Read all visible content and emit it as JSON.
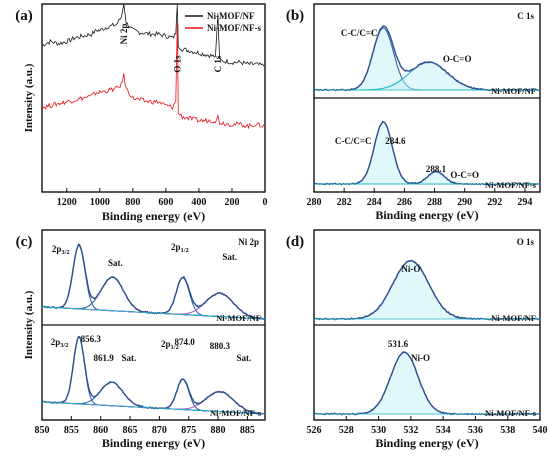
{
  "colors": {
    "black_series": "#1a1a1a",
    "red_series": "#e8141b",
    "fit_envelope": "#2f4f8f",
    "component_blue": "#2e68b0",
    "component_cyan": "#19b8c8",
    "component_purple": "#b15ec9",
    "fill_cyan": "#bdeff5"
  },
  "chart_data": [
    {
      "id": "a",
      "type": "line",
      "panel_label": "(a)",
      "xlabel": "Binding energy (eV)",
      "ylabel": "Intensity (a.u.)",
      "xlim": [
        1350,
        0
      ],
      "x_ticks": [
        1200,
        1000,
        800,
        600,
        400,
        200,
        0
      ],
      "legend_position": "top-right",
      "series": [
        {
          "name": "Ni-MOF/NF",
          "color": "#1a1a1a",
          "points": [
            [
              1350,
              0.78
            ],
            [
              1300,
              0.8
            ],
            [
              1250,
              0.79
            ],
            [
              1200,
              0.8
            ],
            [
              1150,
              0.82
            ],
            [
              1100,
              0.83
            ],
            [
              1050,
              0.84
            ],
            [
              1020,
              0.86
            ],
            [
              1000,
              0.86
            ],
            [
              950,
              0.88
            ],
            [
              900,
              0.89
            ],
            [
              870,
              0.93
            ],
            [
              855,
              1.0
            ],
            [
              840,
              0.9
            ],
            [
              800,
              0.86
            ],
            [
              760,
              0.85
            ],
            [
              700,
              0.84
            ],
            [
              650,
              0.84
            ],
            [
              600,
              0.83
            ],
            [
              560,
              0.82
            ],
            [
              540,
              0.84
            ],
            [
              531,
              1.0
            ],
            [
              525,
              0.78
            ],
            [
              500,
              0.76
            ],
            [
              450,
              0.75
            ],
            [
              400,
              0.74
            ],
            [
              350,
              0.73
            ],
            [
              300,
              0.72
            ],
            [
              285,
              0.95
            ],
            [
              275,
              0.7
            ],
            [
              200,
              0.69
            ],
            [
              150,
              0.69
            ],
            [
              100,
              0.68
            ],
            [
              60,
              0.68
            ],
            [
              0,
              0.67
            ]
          ]
        },
        {
          "name": "Ni-MOF/NF-s",
          "color": "#e8141b",
          "points": [
            [
              1350,
              0.45
            ],
            [
              1300,
              0.46
            ],
            [
              1250,
              0.47
            ],
            [
              1200,
              0.48
            ],
            [
              1150,
              0.49
            ],
            [
              1100,
              0.5
            ],
            [
              1050,
              0.51
            ],
            [
              1020,
              0.53
            ],
            [
              1000,
              0.53
            ],
            [
              950,
              0.54
            ],
            [
              900,
              0.55
            ],
            [
              870,
              0.57
            ],
            [
              855,
              0.62
            ],
            [
              840,
              0.55
            ],
            [
              800,
              0.5
            ],
            [
              760,
              0.49
            ],
            [
              700,
              0.48
            ],
            [
              650,
              0.48
            ],
            [
              600,
              0.46
            ],
            [
              560,
              0.45
            ],
            [
              540,
              0.48
            ],
            [
              531,
              0.9
            ],
            [
              525,
              0.42
            ],
            [
              500,
              0.4
            ],
            [
              450,
              0.39
            ],
            [
              400,
              0.38
            ],
            [
              350,
              0.38
            ],
            [
              300,
              0.38
            ],
            [
              285,
              0.4
            ],
            [
              275,
              0.37
            ],
            [
              200,
              0.36
            ],
            [
              150,
              0.36
            ],
            [
              100,
              0.35
            ],
            [
              60,
              0.36
            ],
            [
              0,
              0.35
            ]
          ]
        }
      ],
      "annotations": [
        {
          "text": "Ni 2p",
          "x": 855
        },
        {
          "text": "O 1s",
          "x": 531
        },
        {
          "text": "C 1s",
          "x": 285
        }
      ]
    },
    {
      "id": "b",
      "type": "line",
      "panel_label": "(b)",
      "xlabel": "Binding energy (eV)",
      "xlim": [
        280,
        295
      ],
      "x_ticks": [
        280,
        282,
        284,
        286,
        288,
        290,
        292,
        294
      ],
      "element_label": "C 1s",
      "subpanels": [
        {
          "sample": "Ni-MOF/NF",
          "components": [
            {
              "name": "C-C/C=C",
              "center": 284.6,
              "amplitude": 1.0,
              "fwhm": 1.6,
              "color": "#2e68b0"
            },
            {
              "name": "O-C=O",
              "center": 287.6,
              "amplitude": 0.45,
              "fwhm": 3.0,
              "color": "#19b8c8"
            }
          ],
          "labels": [
            {
              "text": "C-C/C=C",
              "x": 283.0
            },
            {
              "text": "O-C=O",
              "x": 289.5
            }
          ]
        },
        {
          "sample": "Ni-MOF/NF-s",
          "components": [
            {
              "name": "C-C/C=C",
              "center": 284.6,
              "amplitude": 1.0,
              "fwhm": 1.4,
              "color": "#2e68b0"
            },
            {
              "name": "O-C=O",
              "center": 288.1,
              "amplitude": 0.2,
              "fwhm": 1.3,
              "color": "#19b8c8"
            }
          ],
          "labels": [
            {
              "text": "C-C/C=C",
              "x": 282.6
            },
            {
              "text": "284.6",
              "x": 285.4
            },
            {
              "text": "288.1",
              "x": 288.1
            },
            {
              "text": "O-C=O",
              "x": 290.0
            }
          ]
        }
      ]
    },
    {
      "id": "c",
      "type": "line",
      "panel_label": "(c)",
      "xlabel": "Binding energy (eV)",
      "ylabel": "Intensity (a.u.)",
      "xlim": [
        850,
        888
      ],
      "x_ticks": [
        850,
        855,
        860,
        865,
        870,
        875,
        880,
        885
      ],
      "element_label": "Ni 2p",
      "subpanels": [
        {
          "sample": "Ni-MOF/NF",
          "components": [
            {
              "name": "2p3/2",
              "center": 856.3,
              "amplitude": 0.95,
              "fwhm": 2.4,
              "color": "#2e68b0"
            },
            {
              "name": "Sat.",
              "center": 862.0,
              "amplitude": 0.5,
              "fwhm": 4.5,
              "color": "#2e68b0"
            },
            {
              "name": "2p1/2",
              "center": 874.0,
              "amplitude": 0.55,
              "fwhm": 2.6,
              "color": "#2e68b0"
            },
            {
              "name": "Sat.",
              "center": 880.3,
              "amplitude": 0.35,
              "fwhm": 5.5,
              "color": "#b15ec9"
            }
          ],
          "labels": [
            {
              "text": "2p3/2",
              "x": 853.2
            },
            {
              "text": "Sat.",
              "x": 862.5
            },
            {
              "text": "2p1/2",
              "x": 873.5
            },
            {
              "text": "Sat.",
              "x": 882.0
            }
          ]
        },
        {
          "sample": "Ni-MOF/NF-s",
          "components": [
            {
              "name": "2p3/2",
              "center": 856.3,
              "amplitude": 1.0,
              "fwhm": 2.2,
              "color": "#2e68b0"
            },
            {
              "name": "Sat.",
              "center": 861.9,
              "amplitude": 0.35,
              "fwhm": 4.5,
              "color": "#2e68b0"
            },
            {
              "name": "2p1/2",
              "center": 874.0,
              "amplitude": 0.45,
              "fwhm": 2.4,
              "color": "#2e68b0"
            },
            {
              "name": "Sat.",
              "center": 880.3,
              "amplitude": 0.3,
              "fwhm": 5.5,
              "color": "#b15ec9"
            }
          ],
          "labels": [
            {
              "text": "2p3/2",
              "x": 853.0
            },
            {
              "text": "856.3",
              "x": 858.3
            },
            {
              "text": "861.9",
              "x": 860.5
            },
            {
              "text": "Sat.",
              "x": 864.8
            },
            {
              "text": "874.0",
              "x": 874.3
            },
            {
              "text": "2p1/2",
              "x": 871.8
            },
            {
              "text": "880.3",
              "x": 880.3
            },
            {
              "text": "Sat.",
              "x": 884.4
            }
          ]
        }
      ]
    },
    {
      "id": "d",
      "type": "line",
      "panel_label": "(d)",
      "xlabel": "Binding energy (eV)",
      "xlim": [
        526,
        540
      ],
      "x_ticks": [
        526,
        528,
        530,
        532,
        534,
        536,
        538,
        540
      ],
      "element_label": "O 1s",
      "subpanels": [
        {
          "sample": "Ni-MOF/NF",
          "components": [
            {
              "name": "Ni-O",
              "center": 532.0,
              "amplitude": 0.9,
              "fwhm": 2.6,
              "color": "#2e68b0"
            }
          ],
          "labels": [
            {
              "text": "Ni-O",
              "x": 532.0
            }
          ]
        },
        {
          "sample": "Ni-MOF/NF-s",
          "components": [
            {
              "name": "Ni-O",
              "center": 531.6,
              "amplitude": 0.95,
              "fwhm": 2.0,
              "color": "#2e68b0"
            }
          ],
          "labels": [
            {
              "text": "531.6",
              "x": 531.2
            },
            {
              "text": "Ni-O",
              "x": 532.6
            }
          ]
        }
      ]
    }
  ]
}
